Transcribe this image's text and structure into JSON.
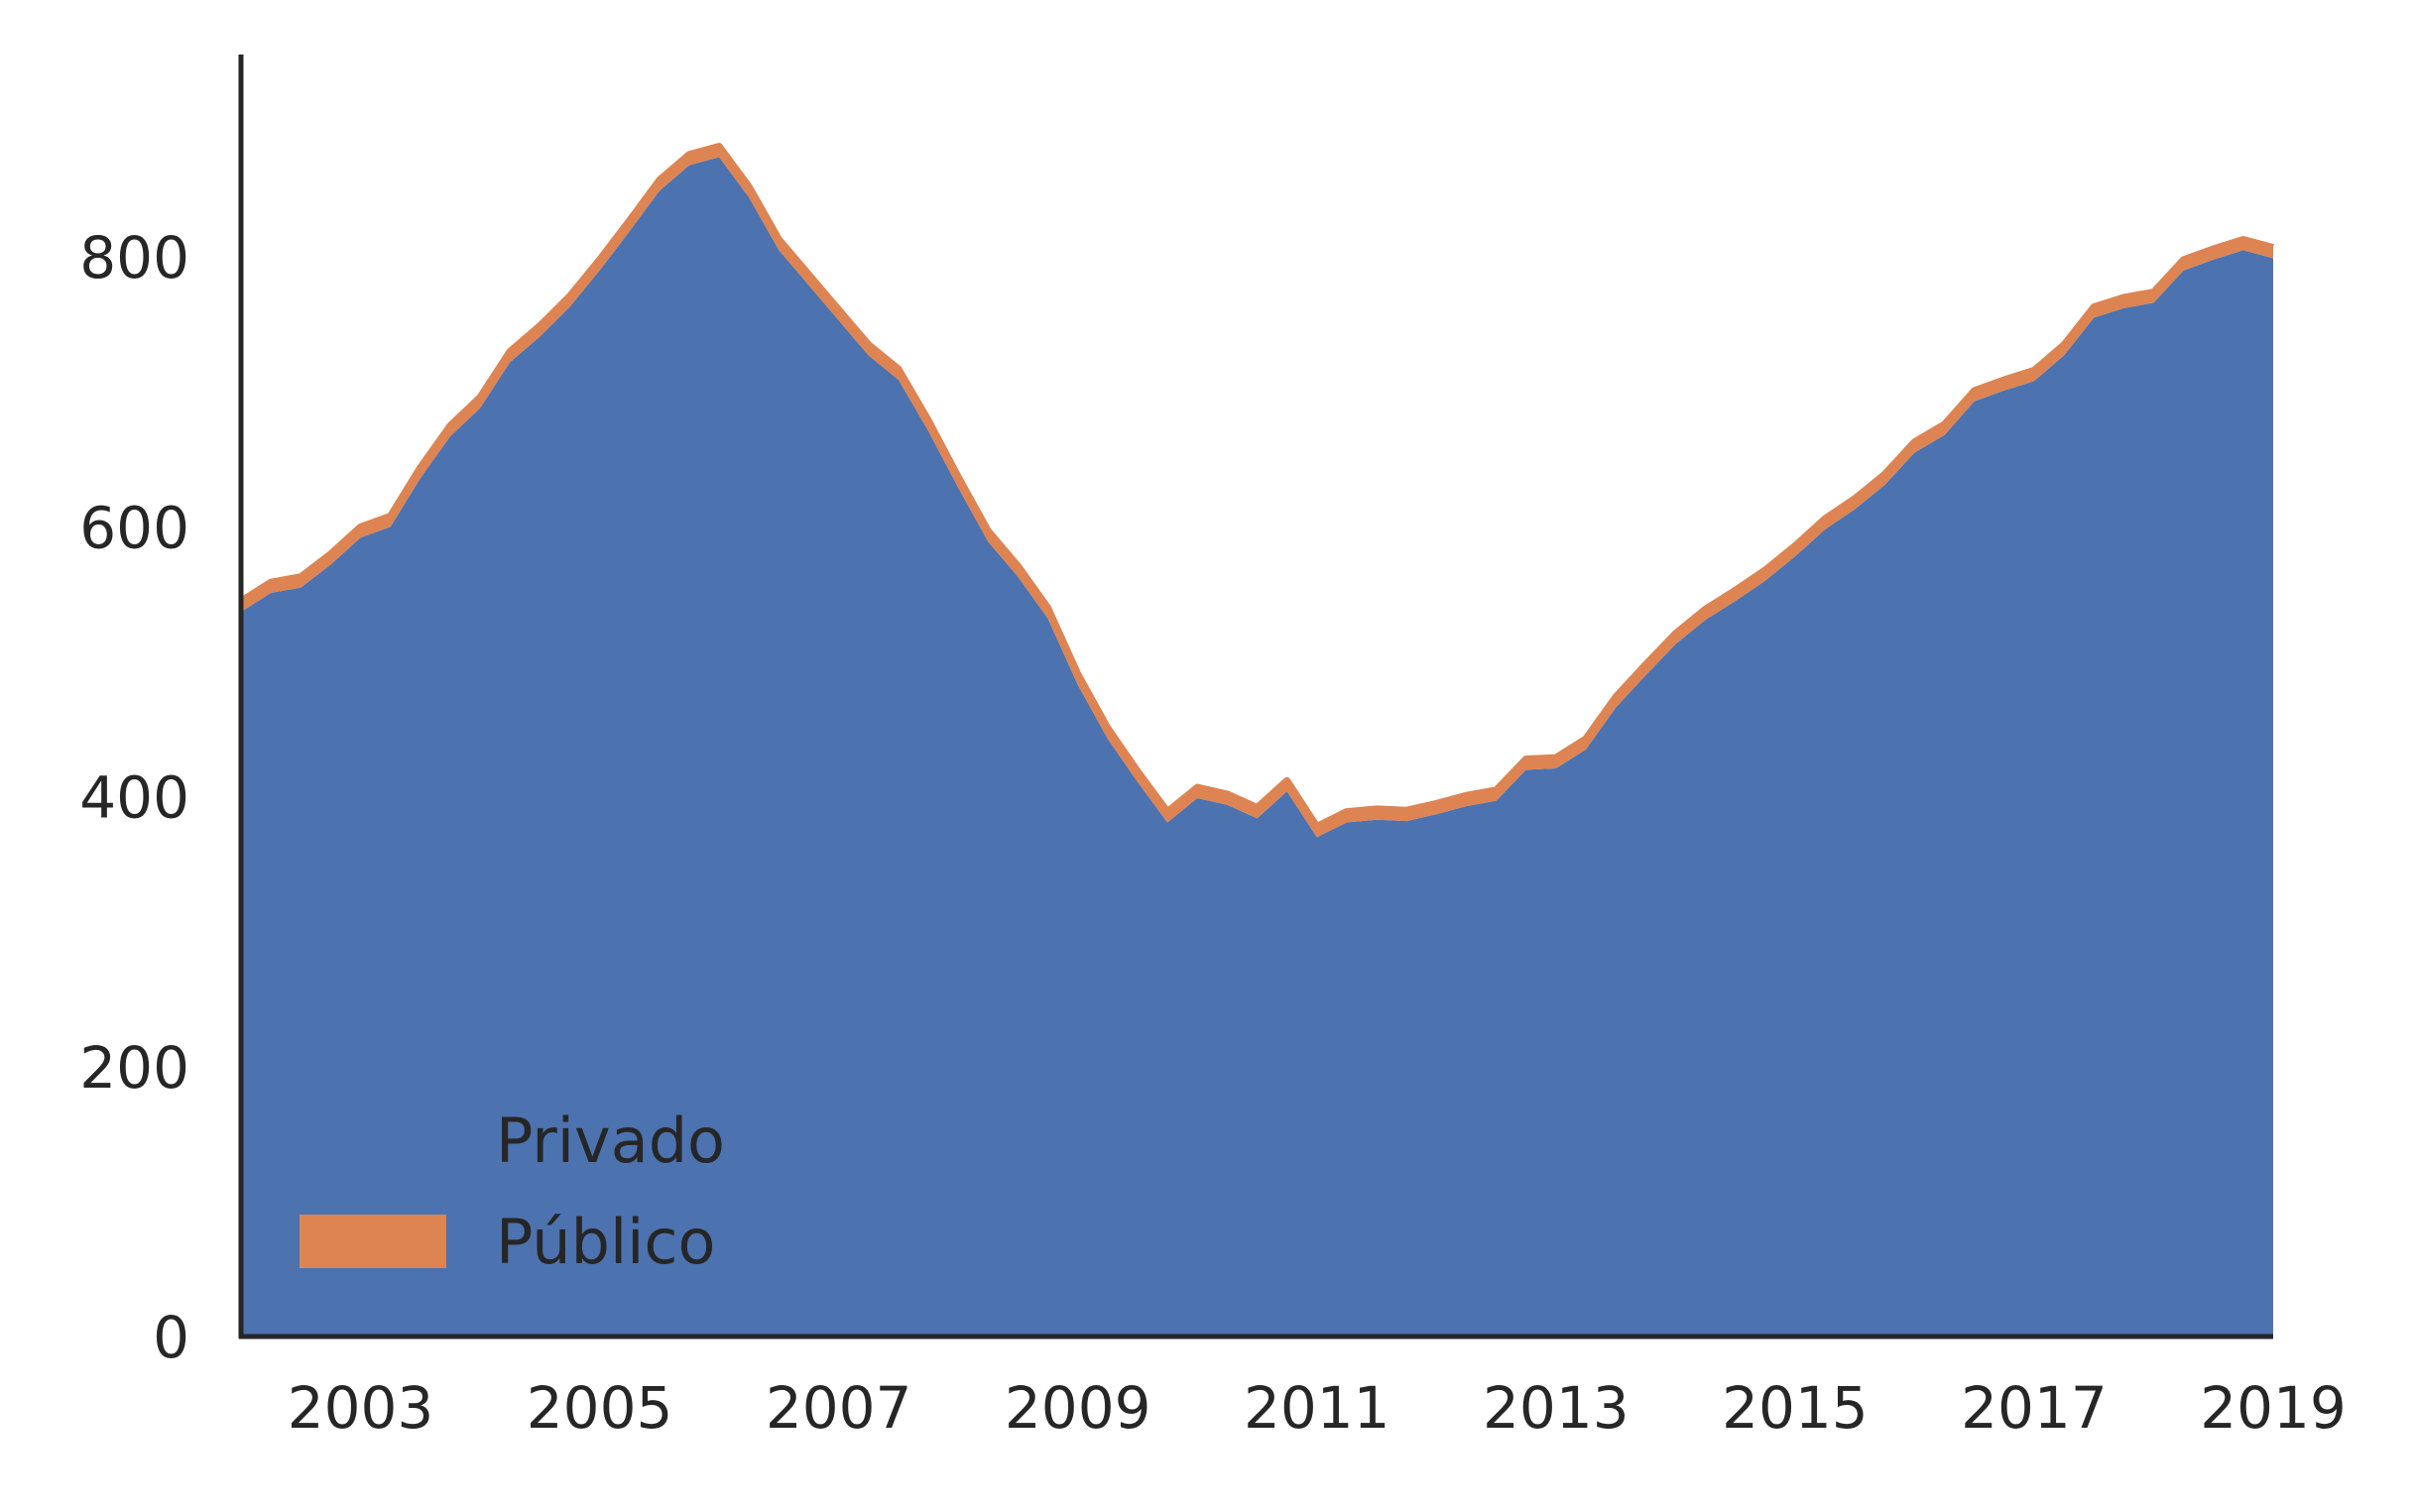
{
  "chart_data": {
    "type": "area",
    "title": "",
    "xlabel": "",
    "ylabel": "",
    "xlim": [
      2002.0,
      2019.0
    ],
    "ylim": [
      0,
      950
    ],
    "x_ticks": [
      2003,
      2005,
      2007,
      2009,
      2011,
      2013,
      2015,
      2017,
      2019
    ],
    "y_ticks": [
      0,
      200,
      400,
      600,
      800
    ],
    "grid": false,
    "legend_position": "lower-left",
    "x": [
      2002.0,
      2002.25,
      2002.5,
      2002.75,
      2003.0,
      2003.25,
      2003.5,
      2003.75,
      2004.0,
      2004.25,
      2004.5,
      2004.75,
      2005.0,
      2005.25,
      2005.5,
      2005.75,
      2006.0,
      2006.25,
      2006.5,
      2006.75,
      2007.0,
      2007.25,
      2007.5,
      2007.75,
      2008.0,
      2008.25,
      2008.5,
      2008.75,
      2009.0,
      2009.25,
      2009.5,
      2009.75,
      2010.0,
      2010.25,
      2010.5,
      2010.75,
      2011.0,
      2011.25,
      2011.5,
      2011.75,
      2012.0,
      2012.25,
      2012.5,
      2012.75,
      2013.0,
      2013.25,
      2013.5,
      2013.75,
      2014.0,
      2014.25,
      2014.5,
      2014.75,
      2015.0,
      2015.25,
      2015.5,
      2015.75,
      2016.0,
      2016.25,
      2016.5,
      2016.75,
      2017.0,
      2017.25,
      2017.5,
      2017.75,
      2018.0,
      2018.25,
      2018.5,
      2018.75,
      2019.0
    ],
    "series": [
      {
        "name": "Privado",
        "color": "#4c72b0",
        "values": [
          537,
          551,
          555,
          572,
          592,
          600,
          636,
          667,
          688,
          722,
          741,
          763,
          790,
          819,
          849,
          868,
          874,
          844,
          805,
          779,
          753,
          727,
          709,
          671,
          629,
          589,
          563,
          532,
          483,
          443,
          411,
          381,
          399,
          394,
          384,
          404,
          370,
          381,
          383,
          382,
          387,
          393,
          397,
          420,
          421,
          435,
          466,
          490,
          513,
          531,
          545,
          560,
          578,
          598,
          613,
          631,
          655,
          668,
          693,
          701,
          708,
          727,
          755,
          762,
          766,
          790,
          798,
          805,
          799
        ],
        "line_values": []
      },
      {
        "name": "Público",
        "color": "#dd8452",
        "values": [
          8,
          8,
          8,
          8,
          8,
          8,
          8,
          8,
          8,
          8,
          8,
          8,
          8,
          8,
          8,
          8,
          8,
          8,
          8,
          8,
          8,
          8,
          8,
          8,
          8,
          8,
          8,
          8,
          8,
          8,
          8,
          8,
          8,
          8,
          8,
          8,
          8,
          8,
          8,
          8,
          8,
          8,
          8,
          8,
          8,
          8,
          8,
          8,
          8,
          8,
          8,
          8,
          8,
          8,
          8,
          8,
          8,
          8,
          8,
          8,
          8,
          8,
          8,
          8,
          8,
          8,
          8,
          8,
          8
        ]
      }
    ]
  },
  "legend": {
    "items": [
      {
        "label": "Privado",
        "color": "#4c72b0",
        "swatch": false
      },
      {
        "label": "Público",
        "color": "#dd8452",
        "swatch": true
      }
    ]
  },
  "axes": {
    "spine_color": "#262626"
  }
}
